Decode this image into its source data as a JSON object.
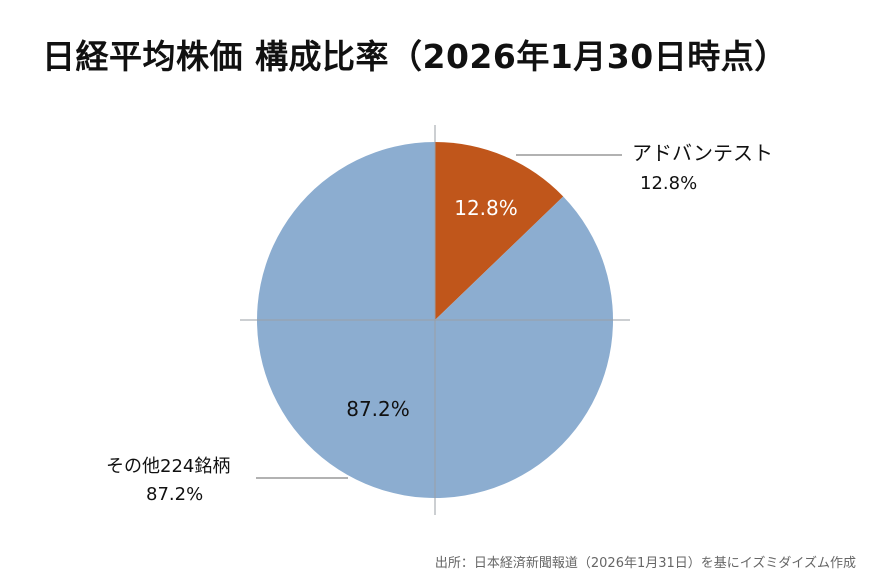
{
  "title": "日経平均株価 構成比率（2026年1月30日時点）",
  "source": "出所：日本経済新聞報道（2026年1月31日）を基にイズミダイズム作成",
  "colors": {
    "advantest": "#c0561b",
    "others": "#8cadd0",
    "axis": "#999999",
    "leader": "#555555"
  },
  "chart_data": {
    "type": "pie",
    "title": "日経平均株価 構成比率（2026年1月30日時点）",
    "slices": [
      {
        "label": "アドバンテスト",
        "value": 12.8,
        "value_label": "12.8%",
        "color": "#c0561b"
      },
      {
        "label": "その他224銘柄",
        "value": 87.2,
        "value_label": "87.2%",
        "color": "#8cadd0"
      }
    ]
  }
}
